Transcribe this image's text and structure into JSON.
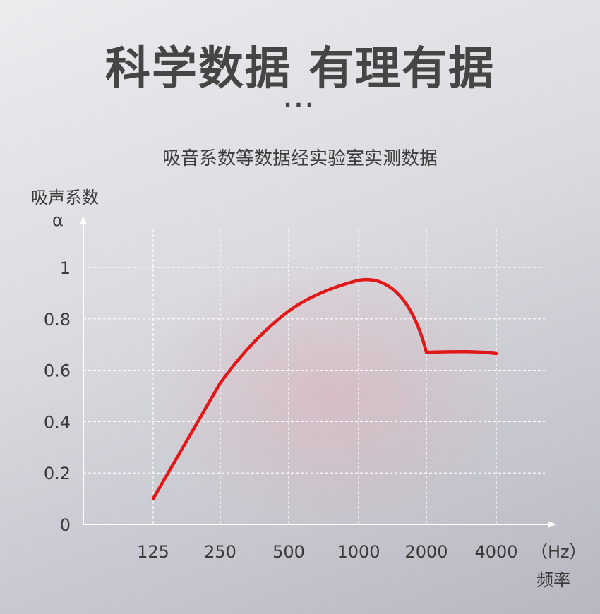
{
  "header": {
    "title": "科学数据 有理有据",
    "dots": "···",
    "subtitle": "吸音系数等数据经实验室实测数据"
  },
  "chart_data": {
    "type": "line",
    "title": "",
    "ylabel": "吸声系数",
    "ysymbol": "α",
    "xlabel": "频率",
    "xunit": "（Hz）",
    "categories": [
      "125",
      "250",
      "500",
      "1000",
      "2000",
      "4000"
    ],
    "series": [
      {
        "values": [
          0.1,
          0.55,
          0.83,
          0.95,
          0.67,
          0.665
        ],
        "color": "#e01818"
      }
    ],
    "yticks": [
      "0",
      "0.2",
      "0.4",
      "0.6",
      "0.8",
      "1"
    ],
    "ylim": [
      0,
      1.15
    ],
    "grid": true
  }
}
